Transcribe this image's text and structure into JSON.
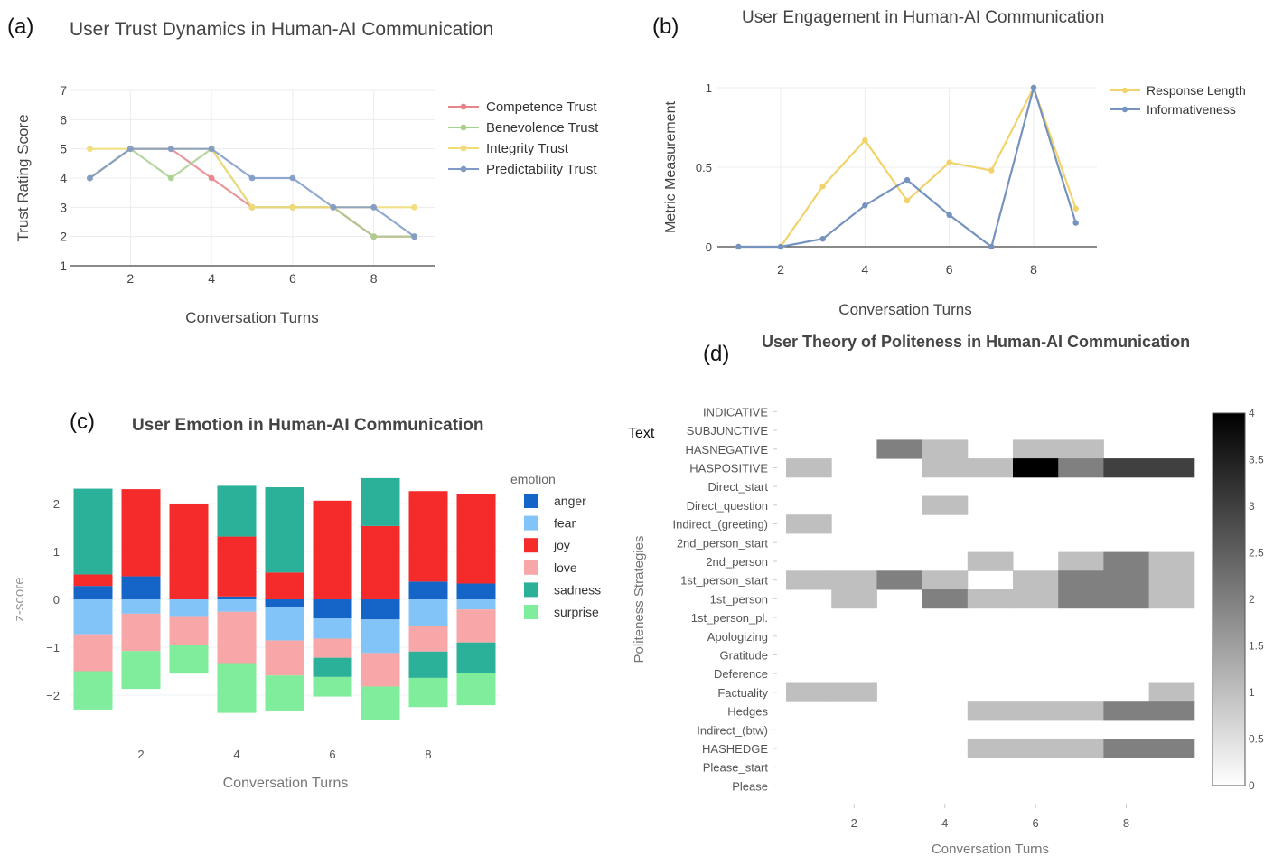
{
  "panels": {
    "a": {
      "letter": "(a)"
    },
    "b": {
      "letter": "(b)"
    },
    "c": {
      "letter": "(c)"
    },
    "d": {
      "letter": "(d)"
    }
  },
  "colors": {
    "competence": "#e8838a",
    "benevolence": "#a8cf8e",
    "integrity": "#f2da74",
    "predictability": "#7f9ac7",
    "response_length": "#f2d36b",
    "informativeness": "#7693bf",
    "anger": "#1565c8",
    "fear": "#82c4f7",
    "joy": "#f52b2b",
    "love": "#f7a7a7",
    "sadness": "#2bb09a",
    "surprise": "#7fed9b"
  },
  "text_label": "Text",
  "chart_data": [
    {
      "id": "a",
      "type": "line",
      "title": "User Trust Dynamics in Human-AI Communication",
      "xlabel": "Conversation Turns",
      "ylabel": "Trust Rating Score",
      "x": [
        1,
        2,
        3,
        4,
        5,
        6,
        7,
        8,
        9
      ],
      "xlim": [
        0.5,
        9.5
      ],
      "ylim": [
        1,
        7
      ],
      "xticks": [
        "2",
        "4",
        "6",
        "8"
      ],
      "yticks": [
        "1",
        "2",
        "3",
        "4",
        "5",
        "6",
        "7"
      ],
      "grid": true,
      "legend_position": "right",
      "series": [
        {
          "name": "Competence Trust",
          "values": [
            4,
            5,
            5,
            4,
            3,
            3,
            3,
            2,
            2
          ]
        },
        {
          "name": "Benevolence Trust",
          "values": [
            4,
            5,
            4,
            5,
            3,
            3,
            3,
            2,
            2
          ]
        },
        {
          "name": "Integrity Trust",
          "values": [
            5,
            5,
            5,
            5,
            3,
            3,
            3,
            3,
            3
          ]
        },
        {
          "name": "Predictability Trust",
          "values": [
            4,
            5,
            5,
            5,
            4,
            4,
            3,
            3,
            2
          ]
        }
      ]
    },
    {
      "id": "b",
      "type": "line",
      "title": "User Engagement in Human-AI Communication",
      "xlabel": "Conversation Turns",
      "ylabel": "Metric Measurement",
      "x": [
        1,
        2,
        3,
        4,
        5,
        6,
        7,
        8,
        9
      ],
      "xlim": [
        0.5,
        9.5
      ],
      "ylim": [
        0,
        1
      ],
      "xticks": [
        "2",
        "4",
        "6",
        "8"
      ],
      "yticks": [
        "0",
        "0.5",
        "1"
      ],
      "grid": true,
      "legend_position": "top-right",
      "series": [
        {
          "name": "Response Length",
          "values": [
            0,
            0,
            0.38,
            0.67,
            0.29,
            0.53,
            0.48,
            1.0,
            0.24
          ]
        },
        {
          "name": "Informativeness",
          "values": [
            0,
            0,
            0.05,
            0.26,
            0.42,
            0.2,
            0,
            1.0,
            0.15
          ]
        }
      ]
    },
    {
      "id": "c",
      "type": "bar",
      "stacked": "relative",
      "title": "User Emotion in Human-AI Communication",
      "xlabel": "Conversation Turns",
      "ylabel": "z-score",
      "legend_title": "emotion",
      "x": [
        1,
        2,
        3,
        4,
        5,
        6,
        7,
        8,
        9
      ],
      "xticks": [
        "2",
        "4",
        "6",
        "8"
      ],
      "yticks": [
        "2",
        "1",
        "0",
        "−1",
        "−2"
      ],
      "ylim": [
        -2.5,
        2.5
      ],
      "series": [
        {
          "name": "anger",
          "values": [
            0.28,
            0.48,
            0,
            0.06,
            -0.16,
            -0.4,
            -0.42,
            0.37,
            0.33
          ]
        },
        {
          "name": "fear",
          "values": [
            -0.73,
            -0.3,
            -0.35,
            -0.26,
            -0.7,
            -0.42,
            -0.7,
            -0.56,
            -0.21
          ]
        },
        {
          "name": "joy",
          "values": [
            0.24,
            1.82,
            2.0,
            1.25,
            0.56,
            2.06,
            1.53,
            1.89,
            1.87
          ]
        },
        {
          "name": "love",
          "values": [
            -0.77,
            -0.78,
            -0.6,
            -1.07,
            -0.73,
            -0.4,
            -0.7,
            -0.53,
            -0.69
          ]
        },
        {
          "name": "sadness",
          "values": [
            1.79,
            0,
            0,
            1.06,
            1.78,
            -0.4,
            1.0,
            -0.55,
            -0.63
          ]
        },
        {
          "name": "surprise",
          "values": [
            -0.8,
            -0.79,
            -0.6,
            -1.04,
            -0.73,
            -0.41,
            -0.7,
            -0.61,
            -0.68
          ]
        }
      ]
    },
    {
      "id": "d",
      "type": "heatmap",
      "title": "User Theory of Politeness in Human-AI Communication",
      "xlabel": "Conversation Turns",
      "ylabel": "Politeness Strategies",
      "x": [
        1,
        2,
        3,
        4,
        5,
        6,
        7,
        8,
        9
      ],
      "xticks": [
        "2",
        "4",
        "6",
        "8"
      ],
      "zlim": [
        0,
        4
      ],
      "colorbar_ticks": [
        "4",
        "3.5",
        "3",
        "2.5",
        "2",
        "1.5",
        "1",
        "0.5",
        "0"
      ],
      "rows": [
        "INDICATIVE",
        "SUBJUNCTIVE",
        "HASNEGATIVE",
        "HASPOSITIVE",
        "Direct_start",
        "Direct_question",
        "Indirect_(greeting)",
        "2nd_person_start",
        "2nd_person",
        "1st_person_start",
        "1st_person",
        "1st_person_pl.",
        "Apologizing",
        "Gratitude",
        "Deference",
        "Factuality",
        "Hedges",
        "Indirect_(btw)",
        "HASHEDGE",
        "Please_start",
        "Please"
      ],
      "z": [
        [
          0,
          0,
          0,
          0,
          0,
          0,
          0,
          0,
          0
        ],
        [
          0,
          0,
          0,
          0,
          0,
          0,
          0,
          0,
          0
        ],
        [
          0,
          0,
          2,
          1,
          0,
          1,
          1,
          0,
          0
        ],
        [
          1,
          0,
          0,
          1,
          1,
          4,
          2,
          3,
          3
        ],
        [
          0,
          0,
          0,
          0,
          0,
          0,
          0,
          0,
          0
        ],
        [
          0,
          0,
          0,
          1,
          0,
          0,
          0,
          0,
          0
        ],
        [
          1,
          0,
          0,
          0,
          0,
          0,
          0,
          0,
          0
        ],
        [
          0,
          0,
          0,
          0,
          0,
          0,
          0,
          0,
          0
        ],
        [
          0,
          0,
          0,
          0,
          1,
          0,
          1,
          2,
          1
        ],
        [
          1,
          1,
          2,
          1,
          0,
          1,
          2,
          2,
          1
        ],
        [
          0,
          1,
          0,
          2,
          1,
          1,
          2,
          2,
          1
        ],
        [
          0,
          0,
          0,
          0,
          0,
          0,
          0,
          0,
          0
        ],
        [
          0,
          0,
          0,
          0,
          0,
          0,
          0,
          0,
          0
        ],
        [
          0,
          0,
          0,
          0,
          0,
          0,
          0,
          0,
          0
        ],
        [
          0,
          0,
          0,
          0,
          0,
          0,
          0,
          0,
          0
        ],
        [
          1,
          1,
          0,
          0,
          0,
          0,
          0,
          0,
          1
        ],
        [
          0,
          0,
          0,
          0,
          1,
          1,
          1,
          2,
          2
        ],
        [
          0,
          0,
          0,
          0,
          0,
          0,
          0,
          0,
          0
        ],
        [
          0,
          0,
          0,
          0,
          1,
          1,
          1,
          2,
          2
        ],
        [
          0,
          0,
          0,
          0,
          0,
          0,
          0,
          0,
          0
        ],
        [
          0,
          0,
          0,
          0,
          0,
          0,
          0,
          0,
          0
        ]
      ]
    }
  ]
}
